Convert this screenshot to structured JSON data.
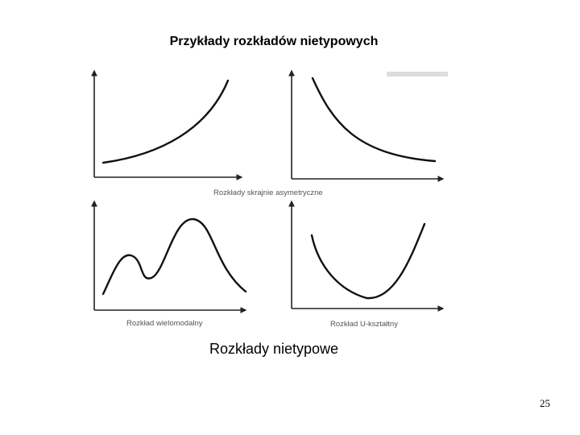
{
  "header": {
    "title": "Przykłady rozkładów nietypowych"
  },
  "figure": {
    "captions": [
      "Rozkłady skrajnie asymetryczne",
      "Rozkład wielomodalny",
      "Rozkład U-kształtny"
    ],
    "label": "Rozkłady nietypowe"
  },
  "footer": {
    "page_number": "25"
  }
}
